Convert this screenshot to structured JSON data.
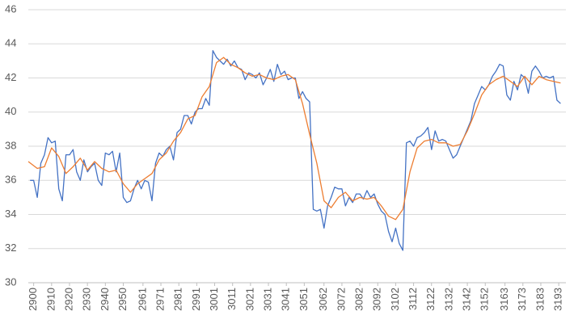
{
  "chart_data": {
    "type": "line",
    "xlim": [
      2897,
      3197
    ],
    "xticks": [
      2900,
      2910,
      2920,
      2930,
      2940,
      2950,
      2961,
      2971,
      2981,
      2991,
      3001,
      3011,
      3021,
      3031,
      3041,
      3051,
      3062,
      3072,
      3082,
      3092,
      3102,
      3112,
      3122,
      3132,
      3142,
      3152,
      3163,
      3173,
      3183,
      3193
    ],
    "ylim": [
      30,
      46
    ],
    "yticks": [
      30,
      32,
      34,
      36,
      38,
      40,
      42,
      44,
      46
    ],
    "grid": true,
    "series": [
      {
        "color": "#4472c4",
        "step": true,
        "x": [
          2898,
          2900,
          2902,
          2904,
          2906,
          2908,
          2910,
          2912,
          2914,
          2916,
          2918,
          2920,
          2922,
          2924,
          2926,
          2928,
          2930,
          2932,
          2934,
          2936,
          2938,
          2940,
          2942,
          2944,
          2946,
          2948,
          2950,
          2952,
          2954,
          2956,
          2958,
          2960,
          2962,
          2964,
          2966,
          2968,
          2970,
          2972,
          2974,
          2976,
          2978,
          2980,
          2982,
          2984,
          2986,
          2988,
          2990,
          2992,
          2994,
          2996,
          2998,
          3000,
          3002,
          3004,
          3006,
          3008,
          3010,
          3012,
          3014,
          3016,
          3018,
          3020,
          3022,
          3024,
          3026,
          3028,
          3030,
          3032,
          3034,
          3036,
          3038,
          3040,
          3042,
          3044,
          3046,
          3048,
          3050,
          3052,
          3054,
          3056,
          3058,
          3060,
          3062,
          3064,
          3066,
          3068,
          3070,
          3072,
          3074,
          3076,
          3078,
          3080,
          3082,
          3084,
          3086,
          3088,
          3090,
          3092,
          3094,
          3096,
          3098,
          3100,
          3102,
          3104,
          3106,
          3108,
          3110,
          3112,
          3114,
          3116,
          3118,
          3120,
          3122,
          3124,
          3126,
          3128,
          3130,
          3132,
          3134,
          3136,
          3138,
          3140,
          3142,
          3144,
          3146,
          3148,
          3150,
          3152,
          3154,
          3156,
          3158,
          3160,
          3162,
          3164,
          3166,
          3168,
          3170,
          3172,
          3174,
          3176,
          3178,
          3180,
          3182,
          3184,
          3186,
          3188,
          3190,
          3192,
          3194
        ],
        "values": [
          36.0,
          36.0,
          35.0,
          37.0,
          37.5,
          38.5,
          38.2,
          38.3,
          35.5,
          34.8,
          37.5,
          37.5,
          37.8,
          36.5,
          36.0,
          37.2,
          36.5,
          36.8,
          37.0,
          36.0,
          35.7,
          37.6,
          37.5,
          37.7,
          36.5,
          37.6,
          35.0,
          34.7,
          34.8,
          35.5,
          36.0,
          35.5,
          36.0,
          35.9,
          34.8,
          37.0,
          37.6,
          37.4,
          37.8,
          38.0,
          37.2,
          38.8,
          39.0,
          39.8,
          39.8,
          39.3,
          40.0,
          40.2,
          40.2,
          40.8,
          40.4,
          43.6,
          43.2,
          43.0,
          42.8,
          43.1,
          42.7,
          43.0,
          42.6,
          42.5,
          41.9,
          42.3,
          42.2,
          42.0,
          42.3,
          41.6,
          42.0,
          42.5,
          41.8,
          42.8,
          42.2,
          42.4,
          41.9,
          42.0,
          42.0,
          40.8,
          41.2,
          40.8,
          40.6,
          34.3,
          34.2,
          34.3,
          33.2,
          34.5,
          35.0,
          35.6,
          35.5,
          35.5,
          34.5,
          35.0,
          34.7,
          35.2,
          35.2,
          34.9,
          35.4,
          35.0,
          35.2,
          34.6,
          34.2,
          34.0,
          33.0,
          32.4,
          33.2,
          32.3,
          31.9,
          38.2,
          38.3,
          38.0,
          38.5,
          38.6,
          38.8,
          39.1,
          37.8,
          38.9,
          38.3,
          38.4,
          38.3,
          37.8,
          37.3,
          37.5,
          38.0,
          38.5,
          39.0,
          39.5,
          40.5,
          41.0,
          41.5,
          41.3,
          41.6,
          42.1,
          42.4,
          42.8,
          42.7,
          41.0,
          40.7,
          41.8,
          41.3,
          42.2,
          42.0,
          41.1,
          42.4,
          42.7,
          42.4,
          42.0,
          42.1,
          42.0,
          42.1,
          40.7,
          40.5
        ]
      },
      {
        "color": "#ed7d31",
        "step": false,
        "x": [
          2897,
          2902,
          2906,
          2910,
          2914,
          2918,
          2922,
          2926,
          2930,
          2934,
          2938,
          2942,
          2946,
          2950,
          2954,
          2958,
          2962,
          2966,
          2970,
          2974,
          2978,
          2982,
          2986,
          2990,
          2994,
          2998,
          3002,
          3006,
          3010,
          3014,
          3018,
          3022,
          3026,
          3030,
          3034,
          3038,
          3042,
          3046,
          3050,
          3054,
          3058,
          3062,
          3066,
          3070,
          3074,
          3078,
          3082,
          3086,
          3090,
          3094,
          3098,
          3102,
          3106,
          3110,
          3114,
          3118,
          3122,
          3126,
          3130,
          3134,
          3138,
          3142,
          3146,
          3150,
          3154,
          3158,
          3162,
          3166,
          3170,
          3174,
          3178,
          3182,
          3186,
          3190,
          3194
        ],
        "values": [
          37.1,
          36.7,
          36.8,
          37.9,
          37.4,
          36.4,
          36.8,
          37.3,
          36.6,
          37.1,
          36.7,
          36.5,
          36.6,
          35.8,
          35.3,
          35.8,
          36.1,
          36.4,
          37.2,
          37.6,
          38.3,
          38.8,
          39.6,
          39.8,
          40.9,
          41.5,
          42.9,
          43.2,
          42.8,
          42.6,
          42.3,
          42.1,
          42.2,
          42.0,
          41.9,
          42.1,
          42.2,
          41.9,
          40.5,
          38.7,
          37.0,
          34.8,
          34.4,
          35.0,
          35.3,
          34.8,
          35.0,
          34.9,
          35.0,
          34.5,
          33.9,
          33.7,
          34.3,
          36.5,
          37.9,
          38.3,
          38.4,
          38.2,
          38.2,
          38.0,
          38.1,
          38.9,
          39.9,
          41.0,
          41.6,
          41.9,
          42.1,
          41.8,
          41.5,
          42.1,
          41.6,
          42.1,
          41.9,
          41.8,
          41.7
        ]
      }
    ]
  }
}
